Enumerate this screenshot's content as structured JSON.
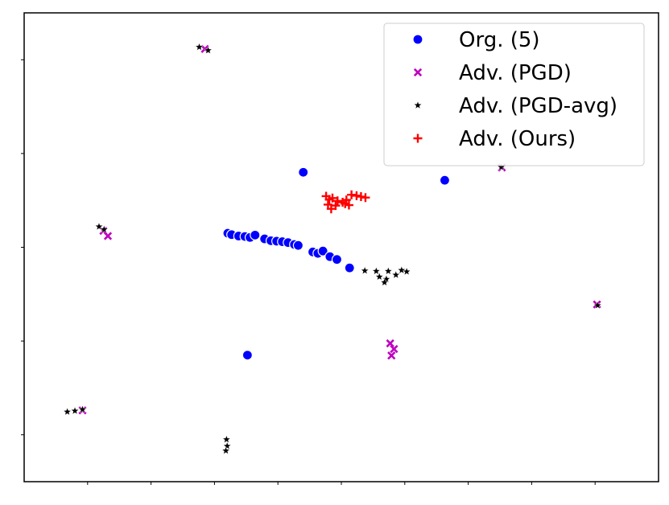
{
  "chart_data": {
    "type": "scatter",
    "title": "",
    "xlabel": "",
    "ylabel": "",
    "xlim": [
      0,
      100
    ],
    "ylim": [
      0,
      100
    ],
    "grid": false,
    "legend_position": "top-right",
    "series": [
      {
        "name": "Org. (5)",
        "marker": "circle",
        "color": "#0000ff",
        "points": [
          [
            44.0,
            66.0
          ],
          [
            66.3,
            64.3
          ],
          [
            35.2,
            27.0
          ],
          [
            32.1,
            53.0
          ],
          [
            32.7,
            52.7
          ],
          [
            33.8,
            52.4
          ],
          [
            34.8,
            52.3
          ],
          [
            35.6,
            52.1
          ],
          [
            36.4,
            52.6
          ],
          [
            37.9,
            51.8
          ],
          [
            38.9,
            51.4
          ],
          [
            39.8,
            51.3
          ],
          [
            40.7,
            51.2
          ],
          [
            41.6,
            51.0
          ],
          [
            42.6,
            50.6
          ],
          [
            43.2,
            50.4
          ],
          [
            45.5,
            49.0
          ],
          [
            46.3,
            48.7
          ],
          [
            47.1,
            49.2
          ],
          [
            48.2,
            48.0
          ],
          [
            49.3,
            47.4
          ],
          [
            51.3,
            45.6
          ]
        ]
      },
      {
        "name": "Adv. (PGD)",
        "marker": "x",
        "color": "#bf00bf",
        "points": [
          [
            28.5,
            92.3
          ],
          [
            12.5,
            53.5
          ],
          [
            13.2,
            52.4
          ],
          [
            9.2,
            15.2
          ],
          [
            57.7,
            29.5
          ],
          [
            58.3,
            28.3
          ],
          [
            57.9,
            26.9
          ],
          [
            75.3,
            67.0
          ],
          [
            90.3,
            37.8
          ]
        ]
      },
      {
        "name": "Adv. (PGD-avg)",
        "marker": "star",
        "color": "#000000",
        "points": [
          [
            27.6,
            92.7
          ],
          [
            29.0,
            92.0
          ],
          [
            11.8,
            54.4
          ],
          [
            12.6,
            53.8
          ],
          [
            6.8,
            14.9
          ],
          [
            8.0,
            15.1
          ],
          [
            9.2,
            15.4
          ],
          [
            31.9,
            9.0
          ],
          [
            32.0,
            7.6
          ],
          [
            31.8,
            6.6
          ],
          [
            53.7,
            45.0
          ],
          [
            55.5,
            44.9
          ],
          [
            56.0,
            43.7
          ],
          [
            57.1,
            43.2
          ],
          [
            57.4,
            44.9
          ],
          [
            58.6,
            44.1
          ],
          [
            59.5,
            45.1
          ],
          [
            60.3,
            44.8
          ],
          [
            56.8,
            42.5
          ],
          [
            75.2,
            67.1
          ],
          [
            90.4,
            37.6
          ]
        ]
      },
      {
        "name": "Adv. (Ours)",
        "marker": "plus",
        "color": "#ff0000",
        "points": [
          [
            47.6,
            60.9
          ],
          [
            48.1,
            60.2
          ],
          [
            48.6,
            60.5
          ],
          [
            49.4,
            59.9
          ],
          [
            50.2,
            59.6
          ],
          [
            50.8,
            60.1
          ],
          [
            51.6,
            61.2
          ],
          [
            52.4,
            61.0
          ],
          [
            53.1,
            60.8
          ],
          [
            53.8,
            60.6
          ],
          [
            47.9,
            59.1
          ],
          [
            49.1,
            58.9
          ],
          [
            48.4,
            58.2
          ],
          [
            50.6,
            59.3
          ],
          [
            51.2,
            59.0
          ]
        ]
      }
    ]
  }
}
